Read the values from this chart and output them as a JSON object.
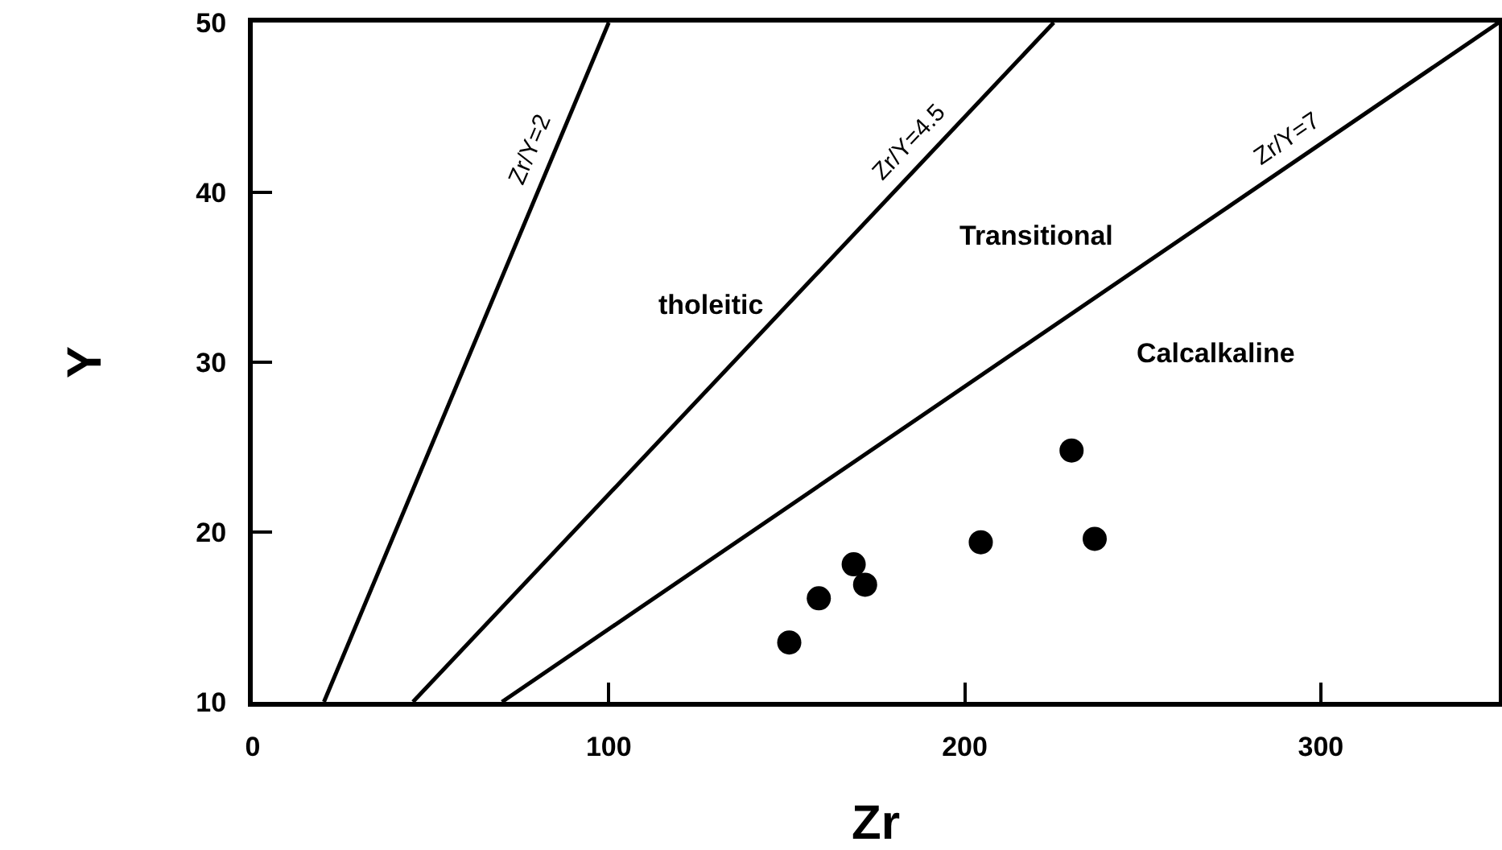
{
  "chart_data": {
    "type": "scatter",
    "xlabel": "Zr",
    "ylabel": "Y",
    "xlim": [
      0,
      350
    ],
    "ylim": [
      10,
      50
    ],
    "xticks": [
      0,
      100,
      200,
      300
    ],
    "yticks": [
      10,
      20,
      30,
      40,
      50
    ],
    "grid": false,
    "legend": false,
    "marker": "circle",
    "series": [
      {
        "name": "Zr/Y=2",
        "type": "line",
        "color": "#000000",
        "line_style": "solid",
        "marker": "none",
        "x": [
          20,
          100
        ],
        "values": [
          10,
          50
        ]
      },
      {
        "name": "Zr/Y=4.5",
        "type": "line",
        "color": "#000000",
        "line_style": "solid",
        "marker": "none",
        "x": [
          45,
          225
        ],
        "values": [
          10,
          50
        ]
      },
      {
        "name": "Zr/Y=7",
        "type": "line",
        "color": "#000000",
        "line_style": "solid",
        "marker": "none",
        "x": [
          70,
          350
        ],
        "values": [
          10,
          50
        ]
      },
      {
        "color": "#000000",
        "x": [
          150.7,
          159,
          168.8,
          172,
          204.5,
          236.5,
          230
        ],
        "values": [
          13.5,
          16.1,
          18.1,
          16.9,
          19.4,
          19.6,
          24.8
        ]
      }
    ],
    "annotations": [
      "tholeitic",
      "Transitional",
      "Calcalkaline"
    ]
  }
}
